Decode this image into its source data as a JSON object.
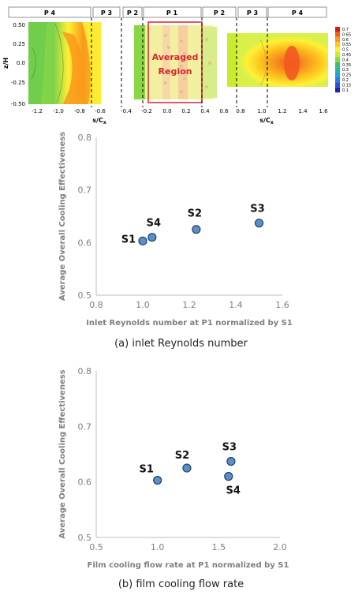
{
  "contour_panel": {
    "segment_labels": [
      "P 4",
      "P 3",
      "P 2",
      "P 1",
      "P 2",
      "P 3",
      "P 4"
    ],
    "ylabel": "z/H",
    "y_ticks": [
      "0.50",
      "0.25",
      "0.0",
      "-0.25",
      "-0.50"
    ],
    "left_xlabel": "s/C",
    "left_xlabel_sub": "x",
    "left_x_ticks": [
      "-1.2",
      "-1.0",
      "-0.8",
      "-0.6"
    ],
    "right_xlabel": "s/C",
    "right_xlabel_sub": "x",
    "right_x_ticks": [
      "-0.4",
      "-0.2",
      "0.0",
      "0.2",
      "0.4",
      "0.6",
      "0.8",
      "1.0",
      "1.2",
      "1.4",
      "1.6"
    ],
    "region_label_line1": "Averaged",
    "region_label_line2": "Region",
    "region_color": "#d9262b",
    "colorbar_labels": [
      "0.7",
      "0.65",
      "0.6",
      "0.55",
      "0.5",
      "0.45",
      "0.4",
      "0.35",
      "0.3",
      "0.25",
      "0.2",
      "0.15",
      "0.1"
    ],
    "colorbar_colors": [
      "#d7191c",
      "#f25a20",
      "#f99a1c",
      "#fdc620",
      "#fff035",
      "#c7ec2b",
      "#8bd743",
      "#3fbf6c",
      "#26b3a3",
      "#1da4d6",
      "#2a7fe0",
      "#2d4fd6",
      "#1f22b8"
    ]
  },
  "captions": {
    "a": "(a) inlet Reynolds number",
    "b": "(b) film cooling flow rate"
  },
  "chart_data": [
    {
      "type": "scatter",
      "xlabel": "Inlet Reynolds number at P1 normalized by S1",
      "ylabel": "Average Overall Cooling Effectiveness",
      "xlim": [
        0.8,
        1.6
      ],
      "ylim": [
        0.5,
        0.8
      ],
      "x_ticks": [
        "0.8",
        "1.0",
        "1.2",
        "1.4",
        "1.6"
      ],
      "y_ticks": [
        "0.5",
        "0.6",
        "0.7",
        "0.8"
      ],
      "points": [
        {
          "label": "S1",
          "x": 1.0,
          "y": 0.603
        },
        {
          "label": "S4",
          "x": 1.04,
          "y": 0.61
        },
        {
          "label": "S2",
          "x": 1.23,
          "y": 0.625
        },
        {
          "label": "S3",
          "x": 1.5,
          "y": 0.637
        }
      ],
      "marker_color": "#5b8fc9",
      "grid": false
    },
    {
      "type": "scatter",
      "xlabel": "Film cooling flow rate at P1  normalized by S1",
      "ylabel": "Average Overall Cooling Effectiveness",
      "xlim": [
        0.5,
        2.0
      ],
      "ylim": [
        0.5,
        0.8
      ],
      "x_ticks": [
        "0.5",
        "1.0",
        "1.5",
        "2.0"
      ],
      "y_ticks": [
        "0.5",
        "0.6",
        "0.7",
        "0.8"
      ],
      "points": [
        {
          "label": "S1",
          "x": 1.0,
          "y": 0.603
        },
        {
          "label": "S2",
          "x": 1.24,
          "y": 0.625
        },
        {
          "label": "S3",
          "x": 1.6,
          "y": 0.637
        },
        {
          "label": "S4",
          "x": 1.58,
          "y": 0.61
        }
      ],
      "marker_color": "#5b8fc9",
      "grid": false
    }
  ]
}
